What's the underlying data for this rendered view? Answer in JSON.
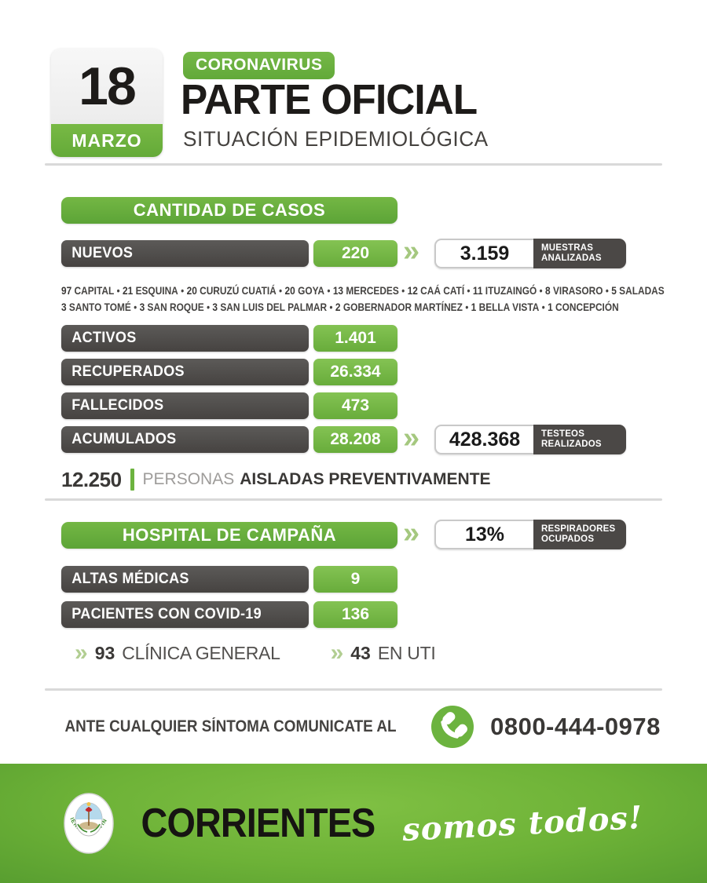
{
  "icons": {
    "chevron": "»"
  },
  "header": {
    "day": "18",
    "month": "MARZO",
    "badge": "CORONAVIRUS",
    "title": "PARTE OFICIAL",
    "subtitle": "SITUACIÓN EPIDEMIOLÓGICA"
  },
  "cases": {
    "title": "CANTIDAD DE CASOS",
    "separator": "•",
    "nuevos": {
      "label": "NUEVOS",
      "value": "220"
    },
    "muestras": {
      "value": "3.159",
      "line1": "MUESTRAS",
      "line2": "ANALIZADAS"
    },
    "breakdown_line1": [
      [
        "97",
        "CAPITAL"
      ],
      [
        "21",
        "ESQUINA"
      ],
      [
        "20",
        "CURUZÚ CUATIÁ"
      ],
      [
        "20",
        "GOYA"
      ],
      [
        "13",
        "MERCEDES"
      ],
      [
        "12",
        "CAÁ CATÍ"
      ],
      [
        "11",
        "ITUZAINGÓ"
      ],
      [
        "8",
        "VIRASORO"
      ],
      [
        "5",
        "SALADAS"
      ]
    ],
    "breakdown_line2": [
      [
        "3",
        "SANTO TOMÉ"
      ],
      [
        "3",
        "SAN ROQUE"
      ],
      [
        "3",
        "SAN LUIS DEL PALMAR"
      ],
      [
        "2",
        "GOBERNADOR MARTÍNEZ"
      ],
      [
        "1",
        "BELLA VISTA"
      ],
      [
        "1",
        "CONCEPCIÓN"
      ]
    ],
    "activos": {
      "label": "ACTIVOS",
      "value": "1.401"
    },
    "recuperados": {
      "label": "RECUPERADOS",
      "value": "26.334"
    },
    "fallecidos": {
      "label": "FALLECIDOS",
      "value": "473"
    },
    "acumulados": {
      "label": "ACUMULADOS",
      "value": "28.208"
    },
    "testeos": {
      "value": "428.368",
      "line1": "TESTEOS",
      "line2": "REALIZADOS"
    },
    "aisladas": {
      "value": "12.250",
      "word_light": "PERSONAS",
      "word_bold": "AISLADAS PREVENTIVAMENTE"
    }
  },
  "hospital": {
    "title": "HOSPITAL DE CAMPAÑA",
    "respiradores": {
      "value": "13%",
      "line1": "RESPIRADORES",
      "line2": "OCUPADOS"
    },
    "altas": {
      "label": "ALTAS MÉDICAS",
      "value": "9"
    },
    "pacientes": {
      "label": "PACIENTES CON COVID-19",
      "value": "136"
    },
    "detail": [
      {
        "value": "93",
        "label": "CLÍNICA GENERAL"
      },
      {
        "value": "43",
        "label": "EN UTI"
      }
    ]
  },
  "contact": {
    "text": "ANTE CUALQUIER SÍNTOMA COMUNICATE AL",
    "phone": "0800-444-0978"
  },
  "footer": {
    "brand": "CORRIENTES",
    "slogan": "somos todos!",
    "logo_text": "GOBIERNO PROVINCIAL"
  }
}
